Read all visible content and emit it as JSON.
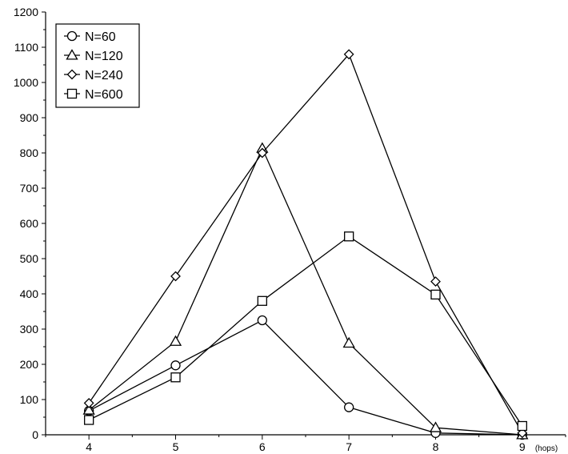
{
  "chart_data": {
    "type": "line",
    "title": "",
    "xlabel": "",
    "ylabel": "",
    "x_unit": "(hops)",
    "x": [
      4,
      5,
      6,
      7,
      8,
      9
    ],
    "xlim": [
      3.5,
      9.5
    ],
    "ylim": [
      0,
      1200
    ],
    "x_ticks": [
      "4",
      "5",
      "6",
      "7",
      "8",
      "9"
    ],
    "y_ticks": [
      "0",
      "100",
      "200",
      "300",
      "400",
      "500",
      "600",
      "700",
      "800",
      "900",
      "1000",
      "1100",
      "1200"
    ],
    "grid": false,
    "legend_position": "top-left",
    "series": [
      {
        "name": "N=60",
        "marker": "circle",
        "values": [
          68,
          197,
          325,
          78,
          5,
          0
        ]
      },
      {
        "name": "N=120",
        "marker": "triangle",
        "values": [
          70,
          265,
          813,
          260,
          20,
          0
        ]
      },
      {
        "name": "N=240",
        "marker": "diamond",
        "values": [
          90,
          450,
          800,
          1080,
          435,
          5
        ]
      },
      {
        "name": "N=600",
        "marker": "square",
        "values": [
          42,
          163,
          380,
          563,
          398,
          25
        ]
      }
    ],
    "colors": {
      "line": "#000000",
      "marker_fill": "#ffffff",
      "background": "#ffffff"
    }
  }
}
